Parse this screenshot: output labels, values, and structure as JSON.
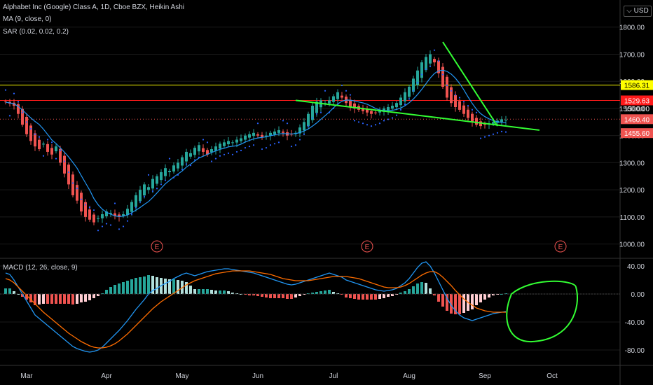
{
  "header": {
    "symbol_line": "Alphabet Inc (Google) Class A, 1D, Cboe BZX, Heikin Ashi",
    "ma_line": "MA (9, close, 0)",
    "sar_line": "SAR (0.02, 0.02, 0.2)",
    "macd_line": "MACD (12, 26, close, 9)",
    "currency_label": "USD",
    "currency_icon": "currency-dropdown-icon"
  },
  "colors": {
    "background": "#000000",
    "up_candle": "#26a69a",
    "down_candle": "#ef5350",
    "ma_line": "#2196f3",
    "sar_dots": "#2962ff",
    "yellow_level": "#ffff00",
    "red_level": "#ff1a1a",
    "trendline": "#33ff33",
    "macd_line": "#2196f3",
    "signal_line": "#ff6d00",
    "hist_up_strong": "#26a69a",
    "hist_up_weak": "#b2dfdb",
    "hist_down_strong": "#ef5350",
    "hist_down_weak": "#ffcdd2",
    "grid": "#1a1a1a",
    "axis_text": "#d1d4dc",
    "earnings_marker": "#ef5350"
  },
  "chart_data": [
    {
      "type": "candlestick",
      "title": "Alphabet Inc (Google) Class A, 1D, Cboe BZX, Heikin Ashi",
      "price_axis": {
        "ticks": [
          1000,
          1100,
          1200,
          1300,
          1400,
          1500,
          1600,
          1700,
          1800
        ],
        "tick_labels": [
          "1000.00",
          "1100.00",
          "1200.00",
          "1300.00",
          "1400.00",
          "1500.00",
          "1600.00",
          "1700.00",
          "1800.00"
        ],
        "range": [
          950,
          1900
        ]
      },
      "time_axis": {
        "labels": [
          "Mar",
          "Apr",
          "May",
          "Jun",
          "Jul",
          "Aug",
          "Sep",
          "Oct"
        ]
      },
      "closes": [
        1523,
        1518,
        1510,
        1480,
        1440,
        1405,
        1380,
        1360,
        1350,
        1370,
        1340,
        1330,
        1360,
        1300,
        1260,
        1220,
        1180,
        1160,
        1120,
        1100,
        1090,
        1080,
        1095,
        1110,
        1120,
        1115,
        1105,
        1100,
        1110,
        1130,
        1155,
        1180,
        1200,
        1220,
        1210,
        1240,
        1250,
        1265,
        1280,
        1270,
        1290,
        1300,
        1320,
        1340,
        1335,
        1355,
        1365,
        1340,
        1330,
        1350,
        1360,
        1370,
        1375,
        1380,
        1375,
        1385,
        1390,
        1400,
        1405,
        1410,
        1400,
        1395,
        1400,
        1410,
        1415,
        1420,
        1410,
        1400,
        1405,
        1410,
        1430,
        1450,
        1480,
        1510,
        1525,
        1530,
        1520,
        1530,
        1545,
        1560,
        1540,
        1520,
        1505,
        1500,
        1495,
        1490,
        1485,
        1480,
        1485,
        1490,
        1500,
        1505,
        1510,
        1520,
        1540,
        1560,
        1580,
        1610,
        1640,
        1670,
        1690,
        1700,
        1670,
        1630,
        1580,
        1540,
        1520,
        1505,
        1495,
        1480,
        1465,
        1450,
        1440,
        1435,
        1440,
        1445,
        1450,
        1455,
        1460,
        1458
      ],
      "ma": {
        "name": "MA (9, close, 0)"
      },
      "sar": {
        "name": "SAR (0.02, 0.02, 0.2)"
      },
      "horizontal_levels": [
        {
          "price": 1586.31,
          "label": "1586.31",
          "color": "#ffff00"
        },
        {
          "price": 1529.63,
          "label": "1529.63",
          "color": "#ff1a1a"
        }
      ],
      "price_labels": [
        {
          "price": 1500.0,
          "label": "1500.00",
          "kind": "axis"
        },
        {
          "price": 1460.4,
          "label": "1460.40",
          "kind": "last"
        },
        {
          "price": 1455.6,
          "label": "1455.60",
          "kind": "prev"
        }
      ],
      "trendlines": [
        {
          "from": [
            69,
            1530
          ],
          "to": [
            127,
            1420
          ]
        },
        {
          "from": [
            104,
            1745
          ],
          "to": [
            117,
            1435
          ]
        }
      ],
      "earnings_markers": [
        {
          "bar": 36,
          "label": "E"
        },
        {
          "bar": 86,
          "label": "E"
        },
        {
          "bar": 132,
          "label": "E"
        }
      ]
    },
    {
      "type": "macd",
      "title": "MACD (12, 26, close, 9)",
      "axis": {
        "ticks": [
          -80,
          -40,
          0,
          40
        ],
        "tick_labels": [
          "-80.00",
          "-40.00",
          "0.00",
          "40.00"
        ],
        "range": [
          -100,
          50
        ]
      },
      "macd": [
        30,
        28,
        20,
        10,
        0,
        -10,
        -20,
        -30,
        -35,
        -40,
        -45,
        -50,
        -55,
        -60,
        -65,
        -70,
        -75,
        -78,
        -80,
        -82,
        -83,
        -82,
        -80,
        -76,
        -70,
        -64,
        -58,
        -52,
        -45,
        -38,
        -30,
        -22,
        -15,
        -8,
        0,
        5,
        8,
        12,
        15,
        18,
        22,
        25,
        28,
        30,
        28,
        26,
        28,
        30,
        32,
        33,
        34,
        35,
        36,
        36,
        35,
        34,
        33,
        32,
        31,
        30,
        28,
        26,
        24,
        22,
        20,
        18,
        16,
        14,
        13,
        14,
        16,
        18,
        20,
        22,
        24,
        26,
        28,
        30,
        28,
        26,
        24,
        20,
        18,
        16,
        14,
        12,
        10,
        8,
        6,
        5,
        4,
        5,
        6,
        8,
        12,
        16,
        22,
        30,
        38,
        44,
        46,
        40,
        30,
        18,
        6,
        -6,
        -16,
        -24,
        -30,
        -34,
        -36,
        -38,
        -36,
        -34,
        -32,
        -30,
        -28,
        -27,
        -26,
        -25
      ],
      "signal": [
        22,
        20,
        16,
        10,
        4,
        -2,
        -8,
        -14,
        -20,
        -26,
        -31,
        -36,
        -41,
        -46,
        -51,
        -56,
        -60,
        -64,
        -68,
        -71,
        -74,
        -76,
        -77,
        -77,
        -76,
        -74,
        -71,
        -67,
        -62,
        -57,
        -51,
        -45,
        -39,
        -33,
        -27,
        -21,
        -16,
        -11,
        -7,
        -3,
        1,
        5,
        9,
        13,
        16,
        19,
        21,
        23,
        25,
        27,
        29,
        30,
        31,
        32,
        33,
        33,
        33,
        33,
        33,
        32,
        31,
        30,
        29,
        28,
        26,
        24,
        22,
        21,
        20,
        19,
        19,
        19,
        19,
        20,
        21,
        22,
        23,
        24,
        25,
        25,
        25,
        25,
        24,
        23,
        22,
        20,
        18,
        16,
        14,
        12,
        10,
        9,
        9,
        9,
        10,
        12,
        15,
        19,
        23,
        27,
        30,
        32,
        32,
        29,
        24,
        18,
        12,
        5,
        -1,
        -7,
        -12,
        -16,
        -20,
        -22,
        -24,
        -25,
        -26,
        -26,
        -26,
        -26
      ],
      "signal_name": "",
      "macd_name": ""
    }
  ],
  "annotations": {
    "green_circle": "hand-drawn circle around recent MACD"
  }
}
